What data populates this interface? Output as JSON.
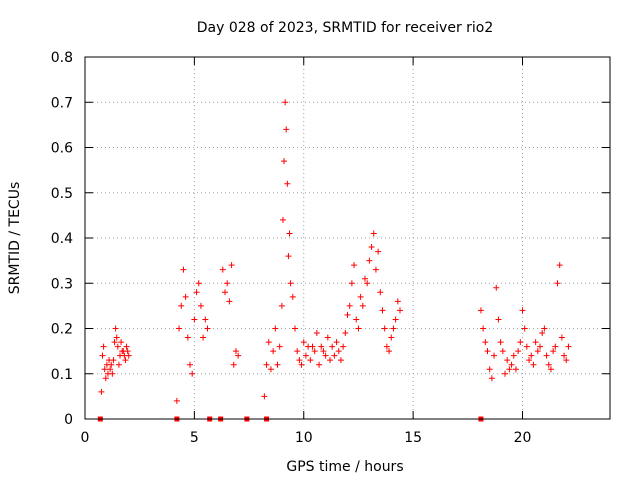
{
  "chart_data": {
    "type": "scatter",
    "title": "Day 028 of 2023, SRMTID for receiver rio2",
    "xlabel": "GPS time / hours",
    "ylabel": "SRMTID / TECUs",
    "xlim": [
      0,
      24
    ],
    "ylim": [
      0,
      0.8
    ],
    "xticks": [
      0,
      5,
      10,
      15,
      20
    ],
    "yticks": [
      0,
      0.1,
      0.2,
      0.3,
      0.4,
      0.5,
      0.6,
      0.7,
      0.8
    ],
    "xtick_labels": [
      "0",
      "5",
      "10",
      "15",
      "20"
    ],
    "ytick_labels": [
      "0",
      "0.1",
      "0.2",
      "0.3",
      "0.4",
      "0.5",
      "0.6",
      "0.7",
      "0.8"
    ],
    "grid": true,
    "marker": "+",
    "marker_color": "#ff0000",
    "zero_markers_x": [
      0.7,
      4.2,
      5.7,
      6.2,
      7.4,
      8.3,
      18.1
    ],
    "series": [
      {
        "name": "SRMTID",
        "x": [
          0.75,
          0.8,
          0.85,
          0.9,
          0.95,
          1.0,
          1.05,
          1.1,
          1.15,
          1.2,
          1.25,
          1.3,
          1.35,
          1.4,
          1.45,
          1.5,
          1.55,
          1.6,
          1.65,
          1.7,
          1.75,
          1.8,
          1.85,
          1.9,
          1.95,
          2.0,
          4.2,
          4.3,
          4.4,
          4.5,
          4.6,
          4.7,
          4.8,
          4.9,
          5.0,
          5.1,
          5.2,
          5.3,
          5.4,
          5.5,
          5.6,
          6.3,
          6.4,
          6.5,
          6.6,
          6.7,
          6.8,
          6.9,
          7.0,
          8.2,
          8.3,
          8.4,
          8.5,
          8.6,
          8.7,
          8.8,
          8.9,
          9.0,
          9.05,
          9.1,
          9.15,
          9.2,
          9.25,
          9.3,
          9.35,
          9.4,
          9.5,
          9.6,
          9.7,
          9.8,
          9.9,
          10.0,
          10.1,
          10.2,
          10.3,
          10.4,
          10.5,
          10.6,
          10.7,
          10.8,
          10.9,
          11.0,
          11.1,
          11.2,
          11.3,
          11.4,
          11.5,
          11.6,
          11.7,
          11.8,
          11.9,
          12.0,
          12.1,
          12.2,
          12.3,
          12.4,
          12.5,
          12.6,
          12.7,
          12.8,
          12.9,
          13.0,
          13.1,
          13.2,
          13.3,
          13.4,
          13.5,
          13.6,
          13.7,
          13.8,
          13.9,
          14.0,
          14.1,
          14.2,
          14.3,
          14.4,
          18.1,
          18.2,
          18.3,
          18.4,
          18.5,
          18.6,
          18.7,
          18.8,
          18.9,
          19.0,
          19.1,
          19.2,
          19.3,
          19.4,
          19.5,
          19.6,
          19.7,
          19.8,
          19.9,
          20.0,
          20.1,
          20.2,
          20.3,
          20.4,
          20.5,
          20.6,
          20.7,
          20.8,
          20.9,
          21.0,
          21.1,
          21.2,
          21.3,
          21.4,
          21.5,
          21.6,
          21.7,
          21.8,
          21.9,
          22.0,
          22.1
        ],
        "y": [
          0.06,
          0.14,
          0.16,
          0.11,
          0.09,
          0.12,
          0.1,
          0.13,
          0.11,
          0.12,
          0.1,
          0.13,
          0.17,
          0.2,
          0.18,
          0.16,
          0.12,
          0.14,
          0.17,
          0.15,
          0.15,
          0.14,
          0.13,
          0.16,
          0.15,
          0.14,
          0.04,
          0.2,
          0.25,
          0.33,
          0.27,
          0.18,
          0.12,
          0.1,
          0.22,
          0.28,
          0.3,
          0.25,
          0.18,
          0.22,
          0.2,
          0.33,
          0.28,
          0.3,
          0.26,
          0.34,
          0.12,
          0.15,
          0.14,
          0.05,
          0.12,
          0.17,
          0.11,
          0.15,
          0.2,
          0.12,
          0.16,
          0.25,
          0.44,
          0.57,
          0.7,
          0.64,
          0.52,
          0.36,
          0.41,
          0.3,
          0.27,
          0.2,
          0.15,
          0.13,
          0.12,
          0.17,
          0.14,
          0.16,
          0.13,
          0.16,
          0.15,
          0.19,
          0.12,
          0.16,
          0.15,
          0.14,
          0.18,
          0.13,
          0.16,
          0.14,
          0.17,
          0.15,
          0.13,
          0.16,
          0.19,
          0.23,
          0.25,
          0.3,
          0.34,
          0.22,
          0.2,
          0.27,
          0.25,
          0.31,
          0.3,
          0.35,
          0.38,
          0.41,
          0.33,
          0.37,
          0.28,
          0.24,
          0.2,
          0.16,
          0.15,
          0.18,
          0.2,
          0.22,
          0.26,
          0.24,
          0.24,
          0.2,
          0.17,
          0.15,
          0.11,
          0.09,
          0.14,
          0.29,
          0.22,
          0.17,
          0.15,
          0.1,
          0.13,
          0.11,
          0.12,
          0.14,
          0.11,
          0.15,
          0.17,
          0.24,
          0.2,
          0.16,
          0.13,
          0.14,
          0.12,
          0.17,
          0.15,
          0.16,
          0.19,
          0.2,
          0.14,
          0.12,
          0.11,
          0.15,
          0.16,
          0.3,
          0.34,
          0.18,
          0.14,
          0.13,
          0.16
        ]
      }
    ]
  }
}
